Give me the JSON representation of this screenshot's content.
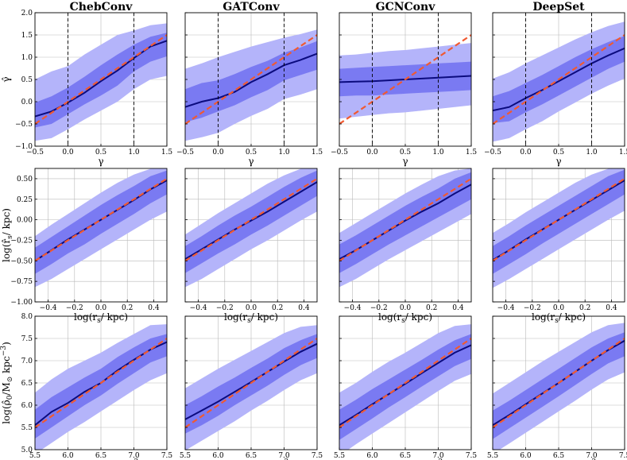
{
  "figure": {
    "columns": [
      "ChebConv",
      "GATConv",
      "GCNConv",
      "DeepSet"
    ],
    "colors": {
      "band_outer": "#b4b4fa",
      "band_inner": "#7a7af2",
      "median": "#0b0b7e",
      "identity": "#f05a32",
      "grid": "#b9b9b9"
    }
  },
  "chart_data": [
    {
      "type": "line",
      "row": 0,
      "col": 0,
      "title": "ChebConv",
      "xlabel": "γ",
      "ylabel": "γ̂",
      "xlim": [
        -0.5,
        1.5
      ],
      "ylim": [
        -1.0,
        2.0
      ],
      "xticks": [
        "−0.5",
        "0.0",
        "0.5",
        "1.0",
        "1.5"
      ],
      "yticks": [
        "−1.0",
        "−0.5",
        "0.0",
        "0.5",
        "1.0",
        "1.5",
        "2.0"
      ],
      "vlines": [
        0,
        1
      ],
      "x": [
        -0.5,
        -0.25,
        0,
        0.25,
        0.5,
        0.75,
        1,
        1.25,
        1.5
      ],
      "median": [
        -0.33,
        -0.22,
        -0.02,
        0.2,
        0.46,
        0.7,
        0.98,
        1.24,
        1.37
      ],
      "band_inner": {
        "low": [
          -0.58,
          -0.5,
          -0.28,
          -0.06,
          0.14,
          0.36,
          0.68,
          0.9,
          1.02
        ],
        "high": [
          -0.02,
          0.12,
          0.32,
          0.56,
          0.82,
          1.06,
          1.28,
          1.46,
          1.55
        ]
      },
      "band_outer": {
        "low": [
          -0.88,
          -0.82,
          -0.62,
          -0.4,
          -0.2,
          0.0,
          0.28,
          0.5,
          0.58
        ],
        "high": [
          0.5,
          0.68,
          0.8,
          1.06,
          1.28,
          1.5,
          1.6,
          1.72,
          1.76
        ]
      },
      "identity": [
        [
          -0.5,
          -0.5
        ],
        [
          1.5,
          1.5
        ]
      ]
    },
    {
      "type": "line",
      "row": 0,
      "col": 1,
      "title": "GATConv",
      "xlabel": "γ",
      "ylabel": "",
      "xlim": [
        -0.5,
        1.5
      ],
      "ylim": [
        -1.0,
        2.0
      ],
      "xticks": [
        "−0.5",
        "0.0",
        "0.5",
        "1.0",
        "1.5"
      ],
      "yticks": [],
      "vlines": [
        0,
        1
      ],
      "x": [
        -0.5,
        -0.25,
        0,
        0.25,
        0.5,
        0.75,
        1,
        1.25,
        1.5
      ],
      "median": [
        -0.12,
        0.0,
        0.08,
        0.22,
        0.44,
        0.62,
        0.82,
        0.94,
        1.08
      ],
      "band_inner": {
        "low": [
          -0.46,
          -0.36,
          -0.22,
          -0.08,
          0.1,
          0.26,
          0.48,
          0.6,
          0.72
        ],
        "high": [
          0.28,
          0.42,
          0.48,
          0.62,
          0.78,
          0.92,
          1.1,
          1.22,
          1.36
        ]
      },
      "band_outer": {
        "low": [
          -0.88,
          -0.8,
          -0.7,
          -0.5,
          -0.32,
          -0.16,
          0.06,
          0.16,
          0.28
        ],
        "high": [
          0.74,
          0.86,
          1.0,
          1.12,
          1.24,
          1.34,
          1.44,
          1.52,
          1.62
        ]
      },
      "identity": [
        [
          -0.5,
          -0.5
        ],
        [
          1.5,
          1.5
        ]
      ]
    },
    {
      "type": "line",
      "row": 0,
      "col": 2,
      "title": "GCNConv",
      "xlabel": "γ",
      "ylabel": "",
      "xlim": [
        -0.5,
        1.5
      ],
      "ylim": [
        -1.0,
        2.0
      ],
      "xticks": [
        "−0.5",
        "0.0",
        "0.5",
        "1.0",
        "1.5"
      ],
      "yticks": [],
      "vlines": [
        0,
        1
      ],
      "x": [
        -0.5,
        -0.25,
        0,
        0.25,
        0.5,
        0.75,
        1,
        1.25,
        1.5
      ],
      "median": [
        0.44,
        0.45,
        0.46,
        0.48,
        0.5,
        0.52,
        0.54,
        0.56,
        0.58
      ],
      "band_inner": {
        "low": [
          0.12,
          0.14,
          0.14,
          0.16,
          0.18,
          0.2,
          0.22,
          0.24,
          0.26
        ],
        "high": [
          0.74,
          0.76,
          0.78,
          0.8,
          0.82,
          0.84,
          0.86,
          0.88,
          0.9
        ]
      },
      "band_outer": {
        "low": [
          -0.38,
          -0.34,
          -0.3,
          -0.26,
          -0.24,
          -0.2,
          -0.16,
          -0.12,
          -0.08
        ],
        "high": [
          1.04,
          1.06,
          1.1,
          1.14,
          1.16,
          1.2,
          1.24,
          1.28,
          1.32
        ]
      },
      "identity": [
        [
          -0.5,
          -0.5
        ],
        [
          1.5,
          1.5
        ]
      ]
    },
    {
      "type": "line",
      "row": 0,
      "col": 3,
      "title": "DeepSet",
      "xlabel": "γ",
      "ylabel": "",
      "xlim": [
        -0.5,
        1.5
      ],
      "ylim": [
        -1.0,
        2.0
      ],
      "xticks": [
        "−0.5",
        "0.0",
        "0.5",
        "1.0",
        "1.5"
      ],
      "yticks": [],
      "vlines": [
        0,
        1
      ],
      "x": [
        -0.5,
        -0.25,
        0,
        0.25,
        0.5,
        0.75,
        1,
        1.25,
        1.5
      ],
      "median": [
        -0.2,
        -0.12,
        0.08,
        0.26,
        0.46,
        0.66,
        0.86,
        1.04,
        1.2
      ],
      "band_inner": {
        "low": [
          -0.48,
          -0.44,
          -0.24,
          -0.06,
          0.14,
          0.34,
          0.54,
          0.74,
          0.9
        ],
        "high": [
          0.12,
          0.24,
          0.42,
          0.6,
          0.8,
          1.0,
          1.18,
          1.34,
          1.48
        ]
      },
      "band_outer": {
        "low": [
          -0.9,
          -0.82,
          -0.62,
          -0.44,
          -0.22,
          -0.02,
          0.18,
          0.36,
          0.52
        ],
        "high": [
          0.52,
          0.66,
          0.86,
          1.04,
          1.22,
          1.4,
          1.56,
          1.7,
          1.8
        ]
      },
      "identity": [
        [
          -0.5,
          -0.5
        ],
        [
          1.5,
          1.5
        ]
      ]
    },
    {
      "type": "line",
      "row": 1,
      "col": 0,
      "title": "",
      "xlabel": "log(r_s/ kpc)",
      "ylabel": "log(r̂_s/ kpc)",
      "xlim": [
        -0.5,
        0.5
      ],
      "ylim": [
        -1.0,
        0.625
      ],
      "xticks": [
        "−0.4",
        "−0.2",
        "0.0",
        "0.2",
        "0.4"
      ],
      "yticks": [
        "−1.00",
        "−0.75",
        "−0.50",
        "−0.25",
        "0.00",
        "0.25",
        "0.50"
      ],
      "vlines": [],
      "x": [
        -0.5,
        -0.375,
        -0.25,
        -0.125,
        0,
        0.125,
        0.25,
        0.375,
        0.5
      ],
      "median": [
        -0.5,
        -0.37,
        -0.24,
        -0.12,
        0.0,
        0.12,
        0.24,
        0.37,
        0.48
      ],
      "band_inner": {
        "low": [
          -0.66,
          -0.54,
          -0.41,
          -0.3,
          -0.17,
          -0.05,
          0.07,
          0.2,
          0.31
        ],
        "high": [
          -0.34,
          -0.21,
          -0.08,
          0.05,
          0.18,
          0.3,
          0.41,
          0.53,
          0.6
        ]
      },
      "band_outer": {
        "low": [
          -0.82,
          -0.72,
          -0.6,
          -0.48,
          -0.36,
          -0.24,
          -0.12,
          0.0,
          0.1
        ],
        "high": [
          -0.2,
          -0.06,
          0.07,
          0.2,
          0.33,
          0.45,
          0.55,
          0.62,
          0.625
        ]
      },
      "identity": [
        [
          -0.5,
          -0.5
        ],
        [
          0.5,
          0.5
        ]
      ]
    },
    {
      "type": "line",
      "row": 1,
      "col": 1,
      "title": "",
      "xlabel": "log(r_s/ kpc)",
      "ylabel": "",
      "xlim": [
        -0.5,
        0.5
      ],
      "ylim": [
        -1.0,
        0.625
      ],
      "xticks": [
        "−0.4",
        "−0.2",
        "0.0",
        "0.2",
        "0.4"
      ],
      "yticks": [],
      "vlines": [],
      "x": [
        -0.5,
        -0.375,
        -0.25,
        -0.125,
        0,
        0.125,
        0.25,
        0.375,
        0.5
      ],
      "median": [
        -0.48,
        -0.36,
        -0.24,
        -0.12,
        -0.01,
        0.1,
        0.22,
        0.34,
        0.46
      ],
      "band_inner": {
        "low": [
          -0.65,
          -0.53,
          -0.41,
          -0.3,
          -0.18,
          -0.07,
          0.05,
          0.17,
          0.29
        ],
        "high": [
          -0.32,
          -0.2,
          -0.07,
          0.05,
          0.16,
          0.28,
          0.4,
          0.51,
          0.6
        ]
      },
      "band_outer": {
        "low": [
          -0.82,
          -0.72,
          -0.6,
          -0.48,
          -0.36,
          -0.25,
          -0.13,
          -0.01,
          0.1
        ],
        "high": [
          -0.18,
          -0.05,
          0.08,
          0.2,
          0.32,
          0.44,
          0.54,
          0.62,
          0.625
        ]
      },
      "identity": [
        [
          -0.5,
          -0.5
        ],
        [
          0.5,
          0.5
        ]
      ]
    },
    {
      "type": "line",
      "row": 1,
      "col": 2,
      "title": "",
      "xlabel": "log(r_s/ kpc)",
      "ylabel": "",
      "xlim": [
        -0.5,
        0.5
      ],
      "ylim": [
        -1.0,
        0.625
      ],
      "xticks": [
        "−0.4",
        "−0.2",
        "0.0",
        "0.2",
        "0.4"
      ],
      "yticks": [],
      "vlines": [],
      "x": [
        -0.5,
        -0.375,
        -0.25,
        -0.125,
        0,
        0.125,
        0.25,
        0.375,
        0.5
      ],
      "median": [
        -0.48,
        -0.37,
        -0.25,
        -0.13,
        -0.01,
        0.1,
        0.2,
        0.32,
        0.43
      ],
      "band_inner": {
        "low": [
          -0.65,
          -0.54,
          -0.42,
          -0.3,
          -0.19,
          -0.08,
          0.03,
          0.14,
          0.25
        ],
        "high": [
          -0.3,
          -0.19,
          -0.07,
          0.05,
          0.17,
          0.28,
          0.38,
          0.5,
          0.58
        ]
      },
      "band_outer": {
        "low": [
          -0.82,
          -0.72,
          -0.6,
          -0.48,
          -0.37,
          -0.26,
          -0.15,
          -0.04,
          0.07
        ],
        "high": [
          -0.16,
          -0.04,
          0.08,
          0.2,
          0.32,
          0.43,
          0.53,
          0.6,
          0.625
        ]
      },
      "identity": [
        [
          -0.5,
          -0.5
        ],
        [
          0.5,
          0.5
        ]
      ]
    },
    {
      "type": "line",
      "row": 1,
      "col": 3,
      "title": "",
      "xlabel": "log(r_s/ kpc)",
      "ylabel": "",
      "xlim": [
        -0.5,
        0.5
      ],
      "ylim": [
        -1.0,
        0.625
      ],
      "xticks": [
        "−0.4",
        "−0.2",
        "0.0",
        "0.2",
        "0.4"
      ],
      "yticks": [],
      "vlines": [],
      "x": [
        -0.5,
        -0.375,
        -0.25,
        -0.125,
        0,
        0.125,
        0.25,
        0.375,
        0.5
      ],
      "median": [
        -0.49,
        -0.37,
        -0.24,
        -0.12,
        0.0,
        0.12,
        0.24,
        0.36,
        0.48
      ],
      "band_inner": {
        "low": [
          -0.66,
          -0.54,
          -0.42,
          -0.29,
          -0.17,
          -0.05,
          0.07,
          0.19,
          0.31
        ],
        "high": [
          -0.32,
          -0.2,
          -0.07,
          0.05,
          0.17,
          0.29,
          0.41,
          0.53,
          0.61
        ]
      },
      "band_outer": {
        "low": [
          -0.83,
          -0.72,
          -0.6,
          -0.48,
          -0.36,
          -0.24,
          -0.12,
          0.0,
          0.11
        ],
        "high": [
          -0.16,
          -0.04,
          0.09,
          0.21,
          0.33,
          0.45,
          0.55,
          0.62,
          0.625
        ]
      },
      "identity": [
        [
          -0.5,
          -0.5
        ],
        [
          0.5,
          0.5
        ]
      ]
    },
    {
      "type": "line",
      "row": 2,
      "col": 0,
      "title": "",
      "xlabel": "log(ρ_0/M_⊙ kpc^−3)",
      "ylabel": "log(ρ̂_0/M_⊙ kpc^−3)",
      "xlim": [
        5.5,
        7.5
      ],
      "ylim": [
        5.0,
        8.0
      ],
      "xticks": [
        "5.5",
        "6.0",
        "6.5",
        "7.0",
        "7.5"
      ],
      "yticks": [
        "5.0",
        "5.5",
        "6.0",
        "6.5",
        "7.0",
        "7.5",
        "8.0"
      ],
      "vlines": [],
      "x": [
        5.5,
        5.75,
        6.0,
        6.25,
        6.5,
        6.75,
        7.0,
        7.25,
        7.5
      ],
      "median": [
        5.55,
        5.85,
        6.05,
        6.3,
        6.5,
        6.78,
        7.02,
        7.25,
        7.42
      ],
      "band_inner": {
        "low": [
          5.25,
          5.5,
          5.75,
          6.0,
          6.22,
          6.48,
          6.72,
          6.96,
          7.1
        ],
        "high": [
          5.9,
          6.18,
          6.4,
          6.62,
          6.82,
          7.08,
          7.3,
          7.5,
          7.6
        ]
      },
      "band_outer": {
        "low": [
          4.9,
          5.15,
          5.4,
          5.62,
          5.86,
          6.1,
          6.34,
          6.56,
          6.72
        ],
        "high": [
          6.28,
          6.58,
          6.82,
          7.0,
          7.18,
          7.4,
          7.6,
          7.8,
          7.82
        ]
      },
      "identity": [
        [
          5.5,
          5.5
        ],
        [
          7.5,
          7.5
        ]
      ]
    },
    {
      "type": "line",
      "row": 2,
      "col": 1,
      "title": "",
      "xlabel": "log(ρ_0/M_⊙ kpc^−3)",
      "ylabel": "",
      "xlim": [
        5.5,
        7.5
      ],
      "ylim": [
        5.0,
        8.0
      ],
      "xticks": [
        "5.5",
        "6.0",
        "6.5",
        "7.0",
        "7.5"
      ],
      "yticks": [],
      "vlines": [],
      "x": [
        5.5,
        5.75,
        6.0,
        6.25,
        6.5,
        6.75,
        7.0,
        7.25,
        7.5
      ],
      "median": [
        5.68,
        5.88,
        6.08,
        6.3,
        6.52,
        6.75,
        6.98,
        7.2,
        7.38
      ],
      "band_inner": {
        "low": [
          5.36,
          5.55,
          5.76,
          6.0,
          6.22,
          6.44,
          6.68,
          6.9,
          7.06
        ],
        "high": [
          6.0,
          6.2,
          6.42,
          6.62,
          6.84,
          7.05,
          7.28,
          7.46,
          7.6
        ]
      },
      "band_outer": {
        "low": [
          4.98,
          5.2,
          5.42,
          5.64,
          5.88,
          6.1,
          6.34,
          6.56,
          6.72
        ],
        "high": [
          6.38,
          6.6,
          6.82,
          7.02,
          7.22,
          7.42,
          7.62,
          7.76,
          7.8
        ]
      },
      "identity": [
        [
          5.5,
          5.5
        ],
        [
          7.5,
          7.5
        ]
      ]
    },
    {
      "type": "line",
      "row": 2,
      "col": 2,
      "title": "",
      "xlabel": "log(ρ_0/M_⊙ kpc^−3)",
      "ylabel": "",
      "xlim": [
        5.5,
        7.5
      ],
      "ylim": [
        5.0,
        8.0
      ],
      "xticks": [
        "5.5",
        "6.0",
        "6.5",
        "7.0",
        "7.5"
      ],
      "yticks": [],
      "vlines": [],
      "x": [
        5.5,
        5.75,
        6.0,
        6.25,
        6.5,
        6.75,
        7.0,
        7.25,
        7.5
      ],
      "median": [
        5.55,
        5.78,
        6.02,
        6.25,
        6.48,
        6.72,
        6.95,
        7.18,
        7.35
      ],
      "band_inner": {
        "low": [
          5.22,
          5.46,
          5.7,
          5.95,
          6.18,
          6.42,
          6.65,
          6.88,
          7.04
        ],
        "high": [
          5.9,
          6.12,
          6.36,
          6.58,
          6.8,
          7.02,
          7.25,
          7.46,
          7.6
        ]
      },
      "band_outer": {
        "low": [
          4.86,
          5.12,
          5.36,
          5.6,
          5.84,
          6.08,
          6.32,
          6.55,
          6.7
        ],
        "high": [
          6.28,
          6.5,
          6.75,
          6.98,
          7.18,
          7.4,
          7.62,
          7.78,
          7.82
        ]
      },
      "identity": [
        [
          5.5,
          5.5
        ],
        [
          7.5,
          7.5
        ]
      ]
    },
    {
      "type": "line",
      "row": 2,
      "col": 3,
      "title": "",
      "xlabel": "log(ρ_0/M_⊙ kpc^−3)",
      "ylabel": "",
      "xlim": [
        5.5,
        7.5
      ],
      "ylim": [
        5.0,
        8.0
      ],
      "xticks": [
        "5.5",
        "6.0",
        "6.5",
        "7.0",
        "7.5"
      ],
      "yticks": [],
      "vlines": [],
      "x": [
        5.5,
        5.75,
        6.0,
        6.25,
        6.5,
        6.75,
        7.0,
        7.25,
        7.5
      ],
      "median": [
        5.55,
        5.78,
        6.02,
        6.26,
        6.5,
        6.75,
        7.0,
        7.24,
        7.45
      ],
      "band_inner": {
        "low": [
          5.24,
          5.48,
          5.72,
          5.96,
          6.2,
          6.45,
          6.7,
          6.94,
          7.1
        ],
        "high": [
          5.88,
          6.1,
          6.34,
          6.58,
          6.82,
          7.06,
          7.3,
          7.5,
          7.64
        ]
      },
      "band_outer": {
        "low": [
          4.9,
          5.14,
          5.38,
          5.62,
          5.86,
          6.1,
          6.35,
          6.58,
          6.74
        ],
        "high": [
          6.26,
          6.5,
          6.74,
          6.98,
          7.2,
          7.42,
          7.64,
          7.8,
          7.85
        ]
      },
      "identity": [
        [
          5.5,
          5.5
        ],
        [
          7.5,
          7.5
        ]
      ]
    }
  ]
}
